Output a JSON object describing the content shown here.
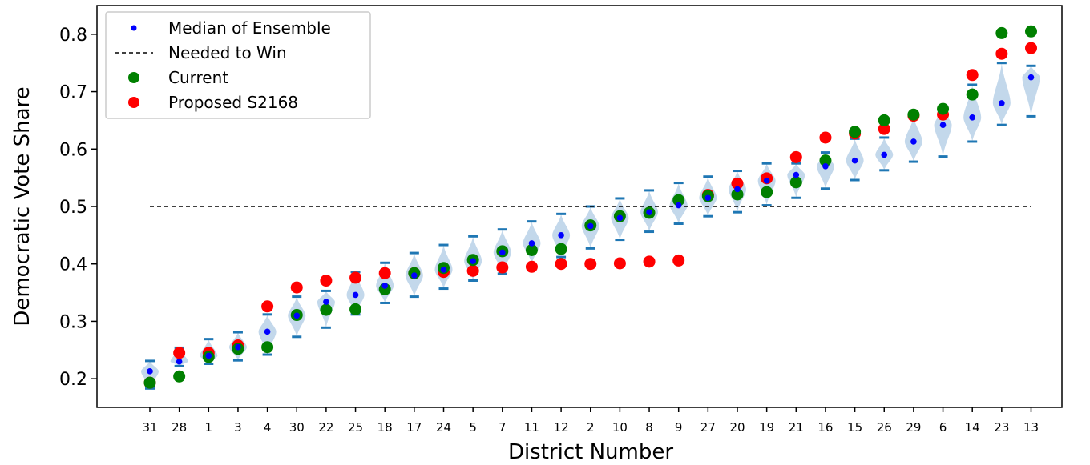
{
  "chart_data": {
    "type": "scatter",
    "xlabel": "District Number",
    "ylabel": "Democratic Vote Share",
    "ylim": [
      0.15,
      0.85
    ],
    "yticks": [
      "0.2",
      "0.3",
      "0.4",
      "0.5",
      "0.6",
      "0.7",
      "0.8"
    ],
    "categories": [
      "31",
      "28",
      "1",
      "3",
      "4",
      "30",
      "22",
      "25",
      "18",
      "17",
      "24",
      "5",
      "7",
      "11",
      "12",
      "2",
      "10",
      "8",
      "9",
      "27",
      "20",
      "19",
      "21",
      "16",
      "15",
      "26",
      "29",
      "6",
      "14",
      "23",
      "13"
    ],
    "needed_to_win": 0.5,
    "legend": {
      "position": "top-left",
      "entries": [
        "Median of Ensemble",
        "Needed to Win",
        "Current",
        "Proposed S2168"
      ]
    },
    "colors": {
      "median": "#0000ff",
      "needed": "#000000",
      "current": "#008000",
      "proposed": "#ff0000",
      "violin_fill": "#b8d1e8",
      "violin_lines": "#1f77b4"
    },
    "series": [
      {
        "name": "Median of Ensemble",
        "values": [
          0.213,
          0.23,
          0.24,
          0.255,
          0.282,
          0.31,
          0.334,
          0.346,
          0.362,
          0.38,
          0.39,
          0.405,
          0.42,
          0.436,
          0.45,
          0.466,
          0.48,
          0.49,
          0.502,
          0.515,
          0.53,
          0.545,
          0.555,
          0.57,
          0.58,
          0.59,
          0.613,
          0.642,
          0.655,
          0.68,
          0.725
        ]
      },
      {
        "name": "Current",
        "values": [
          0.193,
          0.204,
          0.238,
          0.252,
          0.255,
          0.311,
          0.32,
          0.321,
          0.356,
          0.384,
          0.393,
          0.407,
          0.422,
          0.424,
          0.426,
          0.467,
          0.483,
          0.489,
          0.511,
          0.518,
          0.521,
          0.525,
          0.542,
          0.58,
          0.63,
          0.65,
          0.66,
          0.67,
          0.695,
          0.802,
          0.805
        ]
      },
      {
        "name": "Proposed S2168",
        "values": [
          0.193,
          0.245,
          0.245,
          0.258,
          0.326,
          0.359,
          0.371,
          0.376,
          0.384,
          0.384,
          0.386,
          0.388,
          0.394,
          0.395,
          0.4,
          0.4,
          0.401,
          0.404,
          0.406,
          0.52,
          0.54,
          0.549,
          0.586,
          0.62,
          0.627,
          0.635,
          0.658,
          0.66,
          0.729,
          0.766,
          0.776
        ]
      }
    ],
    "ensemble_range": {
      "min": [
        0.183,
        0.222,
        0.226,
        0.232,
        0.242,
        0.273,
        0.289,
        0.312,
        0.332,
        0.343,
        0.357,
        0.371,
        0.383,
        0.4,
        0.412,
        0.427,
        0.442,
        0.456,
        0.47,
        0.483,
        0.49,
        0.502,
        0.515,
        0.531,
        0.546,
        0.563,
        0.578,
        0.587,
        0.613,
        0.642,
        0.657
      ],
      "max": [
        0.231,
        0.254,
        0.269,
        0.281,
        0.312,
        0.343,
        0.353,
        0.386,
        0.402,
        0.419,
        0.433,
        0.448,
        0.46,
        0.474,
        0.487,
        0.5,
        0.514,
        0.528,
        0.541,
        0.552,
        0.562,
        0.575,
        0.575,
        0.594,
        0.618,
        0.62,
        0.657,
        0.672,
        0.712,
        0.75,
        0.745
      ]
    }
  }
}
